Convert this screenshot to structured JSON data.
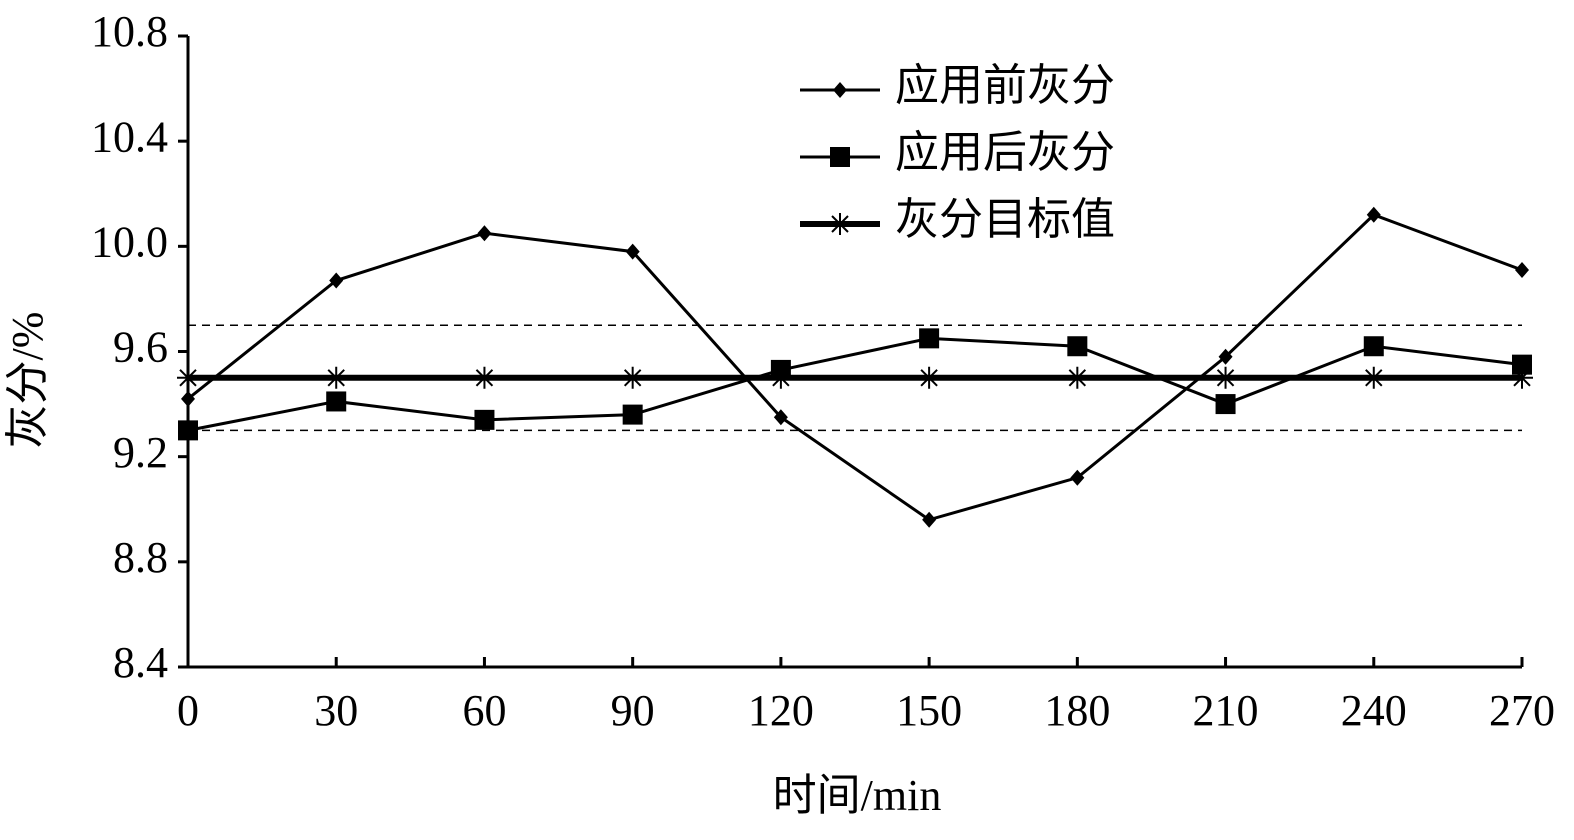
{
  "chart_data": {
    "type": "line",
    "xlabel": "时间/min",
    "ylabel": "灰分/%",
    "x": [
      0,
      30,
      60,
      90,
      120,
      150,
      180,
      210,
      240,
      270
    ],
    "series": [
      {
        "name": "应用前灰分",
        "color": "#000000",
        "marker": "diamond",
        "values": [
          9.42,
          9.87,
          10.05,
          9.98,
          9.35,
          8.96,
          9.12,
          9.58,
          10.12,
          9.91
        ]
      },
      {
        "name": "应用后灰分",
        "color": "#000000",
        "marker": "square",
        "values": [
          9.3,
          9.41,
          9.34,
          9.36,
          9.53,
          9.65,
          9.62,
          9.4,
          9.62,
          9.55
        ]
      },
      {
        "name": "灰分目标值",
        "color": "#000000",
        "marker": "asterisk",
        "values": [
          9.5,
          9.5,
          9.5,
          9.5,
          9.5,
          9.5,
          9.5,
          9.5,
          9.5,
          9.5
        ]
      }
    ],
    "reference_lines": [
      9.7,
      9.3
    ],
    "xlim": [
      0,
      270
    ],
    "xticks": [
      0,
      30,
      60,
      90,
      120,
      150,
      180,
      210,
      240,
      270
    ],
    "ylim": [
      8.4,
      10.8
    ],
    "yticks": [
      8.4,
      8.8,
      9.2,
      9.6,
      {
        "value": 10,
        "label": "10.0"
      },
      10.4,
      10.8
    ],
    "grid": false,
    "legend": "upper right"
  }
}
